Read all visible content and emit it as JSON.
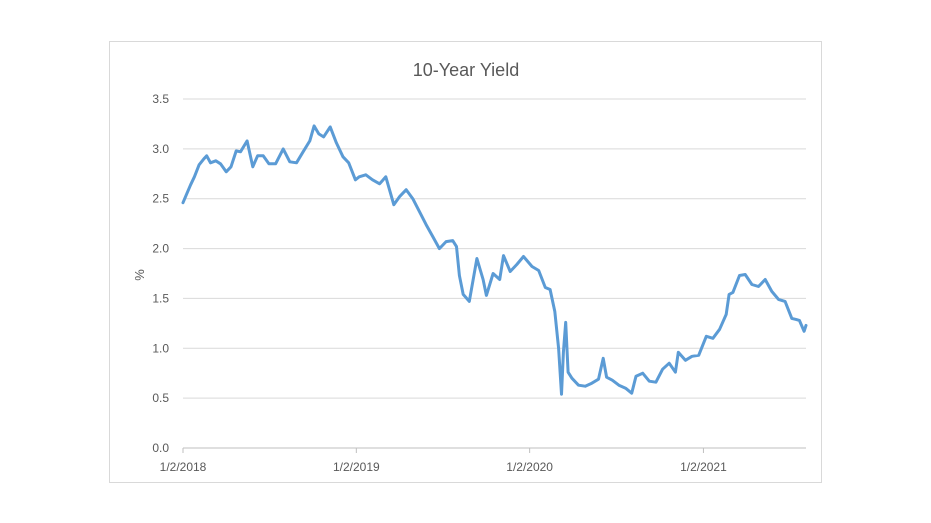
{
  "chart_data": {
    "type": "line",
    "title": "10-Year Yield",
    "xlabel": "",
    "ylabel": "%",
    "ylim": [
      0,
      3.5
    ],
    "xlim": [
      "2018-01-02",
      "2021-08-06"
    ],
    "y_ticks": [
      "0.0",
      "0.5",
      "1.0",
      "1.5",
      "2.0",
      "2.5",
      "3.0",
      "3.5"
    ],
    "x_ticks": [
      {
        "date": "2018-01-02",
        "label": "1/2/2018"
      },
      {
        "date": "2019-01-02",
        "label": "1/2/2019"
      },
      {
        "date": "2020-01-02",
        "label": "1/2/2020"
      },
      {
        "date": "2021-01-02",
        "label": "1/2/2021"
      }
    ],
    "grid": "horizontal",
    "legend": "none",
    "line_color": "#5b9bd5",
    "series": [
      {
        "x": [
          "2018-01-02",
          "2018-01-10",
          "2018-01-18",
          "2018-01-26",
          "2018-02-05",
          "2018-02-15",
          "2018-02-21",
          "2018-03-01",
          "2018-03-12",
          "2018-03-22",
          "2018-04-03",
          "2018-04-13",
          "2018-04-24",
          "2018-05-03",
          "2018-05-17",
          "2018-05-29",
          "2018-06-08",
          "2018-06-20",
          "2018-07-02",
          "2018-07-16",
          "2018-08-01",
          "2018-08-15",
          "2018-08-29",
          "2018-09-12",
          "2018-09-26",
          "2018-10-05",
          "2018-10-15",
          "2018-10-25",
          "2018-11-08",
          "2018-11-21",
          "2018-12-05",
          "2018-12-17",
          "2018-12-31",
          "2019-01-08",
          "2019-01-22",
          "2019-02-05",
          "2019-02-20",
          "2019-03-05",
          "2019-03-22",
          "2019-04-03",
          "2019-04-17",
          "2019-05-01",
          "2019-05-15",
          "2019-05-29",
          "2019-06-12",
          "2019-06-26",
          "2019-07-10",
          "2019-07-24",
          "2019-08-01",
          "2019-08-07",
          "2019-08-15",
          "2019-08-28",
          "2019-09-13",
          "2019-09-26",
          "2019-10-03",
          "2019-10-17",
          "2019-10-31",
          "2019-11-08",
          "2019-11-22",
          "2019-12-06",
          "2019-12-20",
          "2020-01-07",
          "2020-01-21",
          "2020-02-04",
          "2020-02-14",
          "2020-02-24",
          "2020-03-03",
          "2020-03-09",
          "2020-03-13",
          "2020-03-18",
          "2020-03-23",
          "2020-03-31",
          "2020-04-14",
          "2020-04-28",
          "2020-05-12",
          "2020-05-26",
          "2020-06-05",
          "2020-06-12",
          "2020-06-24",
          "2020-07-08",
          "2020-07-22",
          "2020-08-04",
          "2020-08-13",
          "2020-08-27",
          "2020-09-10",
          "2020-09-24",
          "2020-10-08",
          "2020-10-22",
          "2020-11-04",
          "2020-11-10",
          "2020-11-25",
          "2020-12-09",
          "2020-12-23",
          "2021-01-08",
          "2021-01-22",
          "2021-02-05",
          "2021-02-19",
          "2021-02-25",
          "2021-03-05",
          "2021-03-19",
          "2021-03-31",
          "2021-04-14",
          "2021-04-28",
          "2021-05-12",
          "2021-05-26",
          "2021-06-09",
          "2021-06-23",
          "2021-07-07",
          "2021-07-16",
          "2021-07-23",
          "2021-08-02",
          "2021-08-06"
        ],
        "y": [
          2.46,
          2.55,
          2.64,
          2.72,
          2.84,
          2.9,
          2.93,
          2.86,
          2.88,
          2.85,
          2.77,
          2.82,
          2.98,
          2.97,
          3.08,
          2.82,
          2.93,
          2.93,
          2.85,
          2.85,
          3.0,
          2.87,
          2.86,
          2.97,
          3.08,
          3.23,
          3.15,
          3.12,
          3.22,
          3.06,
          2.92,
          2.86,
          2.69,
          2.72,
          2.74,
          2.69,
          2.65,
          2.72,
          2.44,
          2.52,
          2.59,
          2.5,
          2.37,
          2.24,
          2.12,
          2.0,
          2.07,
          2.08,
          2.02,
          1.73,
          1.54,
          1.47,
          1.9,
          1.69,
          1.53,
          1.75,
          1.69,
          1.93,
          1.77,
          1.84,
          1.92,
          1.82,
          1.78,
          1.61,
          1.59,
          1.37,
          1.0,
          0.54,
          0.96,
          1.26,
          0.76,
          0.7,
          0.63,
          0.62,
          0.65,
          0.69,
          0.9,
          0.71,
          0.68,
          0.63,
          0.6,
          0.55,
          0.72,
          0.75,
          0.67,
          0.66,
          0.79,
          0.85,
          0.76,
          0.96,
          0.88,
          0.92,
          0.93,
          1.12,
          1.1,
          1.19,
          1.34,
          1.54,
          1.56,
          1.73,
          1.74,
          1.64,
          1.62,
          1.69,
          1.57,
          1.49,
          1.47,
          1.3,
          1.29,
          1.28,
          1.17,
          1.23
        ]
      }
    ]
  }
}
